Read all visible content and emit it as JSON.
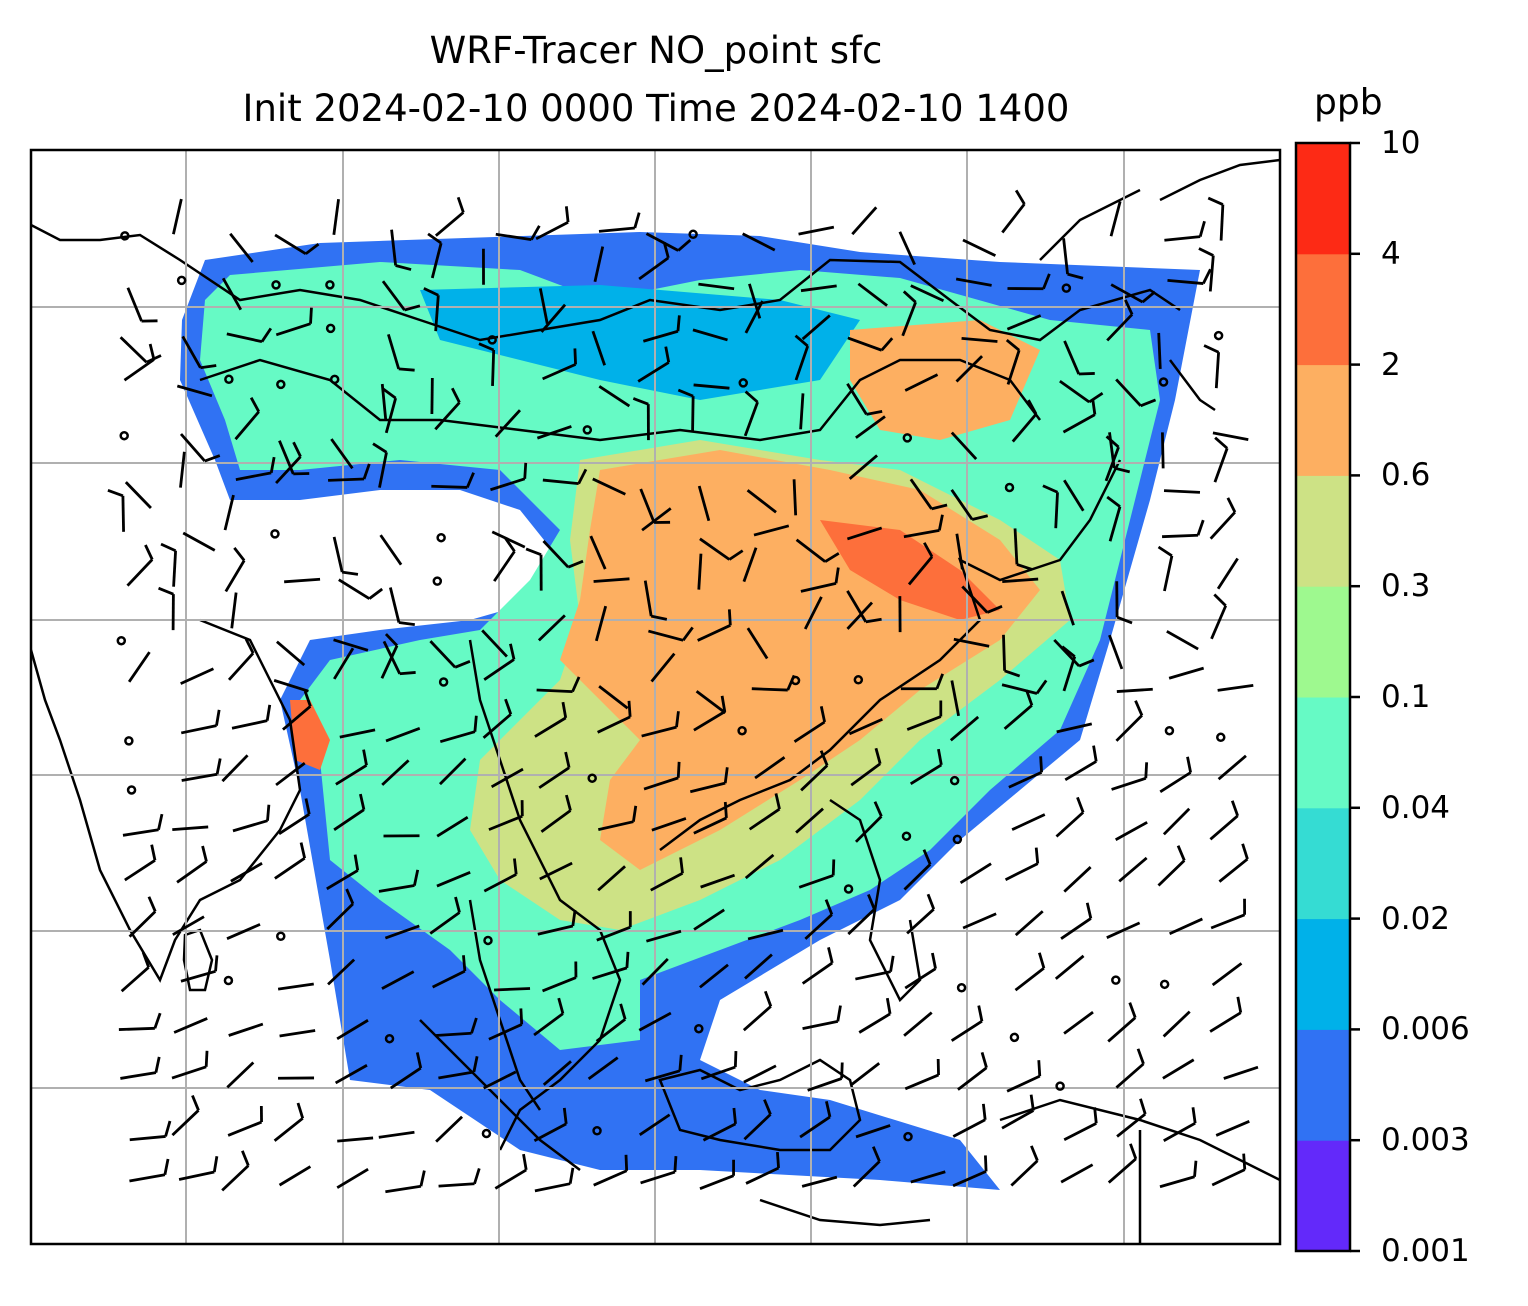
{
  "title_line1": "WRF-Tracer NO_point sfc",
  "title_line2": "Init 2024-02-10 0000 Time 2024-02-10 1400",
  "colorbar": {
    "unit": "ppb",
    "ticks": [
      "10",
      "4",
      "2",
      "0.6",
      "0.3",
      "0.1",
      "0.04",
      "0.02",
      "0.006",
      "0.003",
      "0.001"
    ],
    "colors": [
      "#6329fa",
      "#3072f3",
      "#00b1e9",
      "#35dcd3",
      "#66fac5",
      "#9ef98f",
      "#cde285",
      "#fdaf61",
      "#fd6f3b",
      "#fd2a15"
    ]
  },
  "colors": {
    "gridlines": "#b0b0b0",
    "coastline": "#000000",
    "wind_barbs": "#000000"
  }
}
